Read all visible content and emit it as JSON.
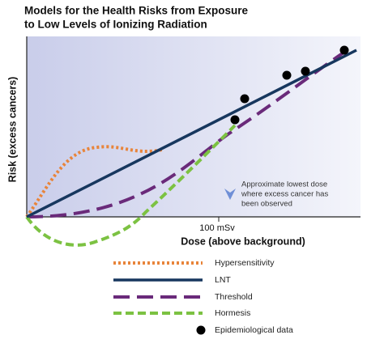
{
  "title": [
    "Models for the Health Risks from Exposure",
    "to Low Levels of Ionizing Radiation"
  ],
  "y_axis_label": "Risk (excess cancers)",
  "x_axis_label": "Dose (above background)",
  "x_marker_label": "100 mSv",
  "annotation": [
    "Approximate lowest dose",
    "where excess cancer has",
    "been observed"
  ],
  "legend": [
    "Hypersensitivity",
    "LNT",
    "Threshold",
    "Hormesis",
    "Epidemiological data"
  ]
}
